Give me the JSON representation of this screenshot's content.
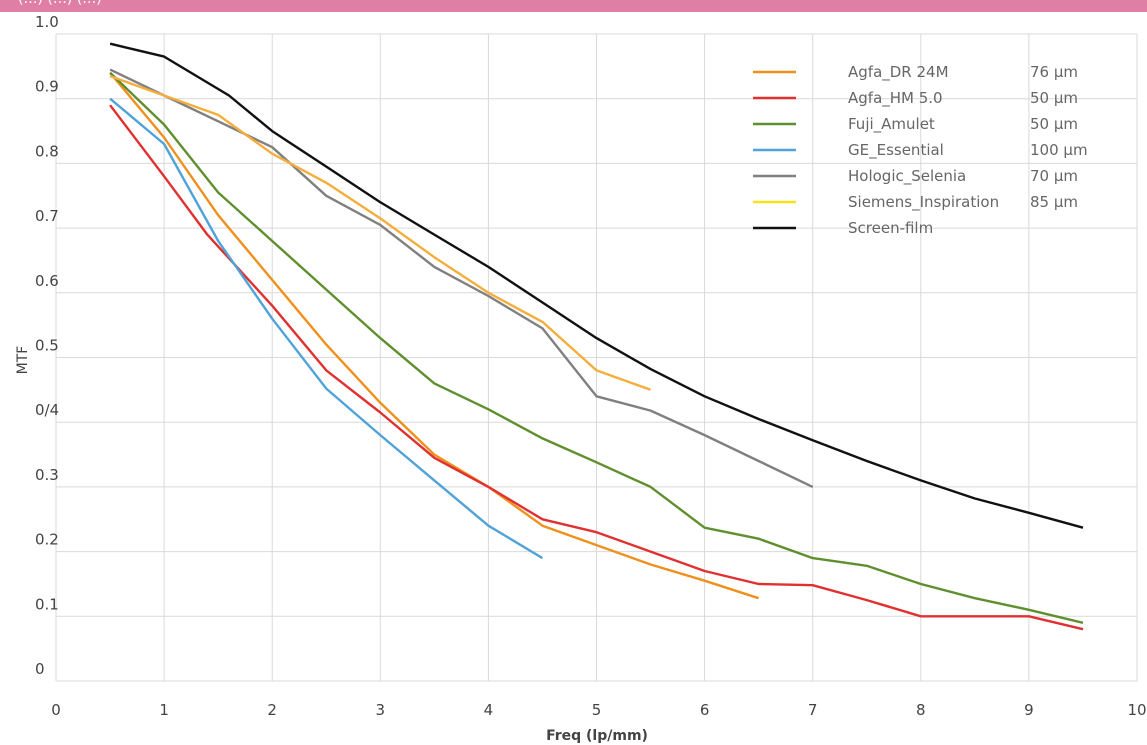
{
  "header": {
    "text": "(…) (…) (…)",
    "color": "#e07fa6"
  },
  "chart_data": {
    "type": "line",
    "title": "",
    "xlabel": "Freq (lp/mm)",
    "ylabel": "MTF",
    "xlim": [
      0,
      10
    ],
    "ylim": [
      0,
      1.0
    ],
    "x_ticks": [
      "0",
      "1",
      "2",
      "3",
      "4",
      "5",
      "6",
      "7",
      "8",
      "9",
      "10"
    ],
    "y_ticks": [
      "0",
      "0.1",
      "0.2",
      "0.3",
      "0/4",
      "0.5",
      "0.6",
      "0.7",
      "0.8",
      "0.9",
      "1.0"
    ],
    "grid": "vertical and horizontal",
    "legend_position": "top-right",
    "series": [
      {
        "name": "Agfa_DR 24M",
        "pixel_size": "76 µm",
        "color": "#f0901c",
        "points": [
          [
            0.5,
            0.94
          ],
          [
            1.0,
            0.84
          ],
          [
            1.5,
            0.72
          ],
          [
            2.0,
            0.62
          ],
          [
            2.25,
            0.57
          ],
          [
            2.5,
            0.52
          ],
          [
            3.0,
            0.43
          ],
          [
            3.5,
            0.35
          ],
          [
            4.0,
            0.3
          ],
          [
            4.5,
            0.24
          ],
          [
            5.0,
            0.21
          ],
          [
            5.5,
            0.18
          ],
          [
            6.0,
            0.155
          ],
          [
            6.5,
            0.128
          ]
        ]
      },
      {
        "name": "Agfa_HM 5.0",
        "pixel_size": "50 µm",
        "color": "#e03030",
        "points": [
          [
            0.5,
            0.89
          ],
          [
            1.0,
            0.78
          ],
          [
            1.4,
            0.69
          ],
          [
            2.0,
            0.58
          ],
          [
            2.5,
            0.48
          ],
          [
            3.0,
            0.415
          ],
          [
            3.5,
            0.345
          ],
          [
            4.0,
            0.3
          ],
          [
            4.5,
            0.25
          ],
          [
            5.0,
            0.23
          ],
          [
            5.5,
            0.2
          ],
          [
            6.0,
            0.17
          ],
          [
            6.5,
            0.15
          ],
          [
            7.0,
            0.148
          ],
          [
            7.5,
            0.125
          ],
          [
            8.0,
            0.1
          ],
          [
            8.5,
            0.1
          ],
          [
            9.0,
            0.1
          ],
          [
            9.5,
            0.08
          ]
        ]
      },
      {
        "name": "Fuji_Amulet",
        "pixel_size": "50 µm",
        "color": "#5f8f2e",
        "points": [
          [
            0.5,
            0.94
          ],
          [
            1.0,
            0.86
          ],
          [
            1.5,
            0.755
          ],
          [
            2.0,
            0.68
          ],
          [
            2.5,
            0.605
          ],
          [
            3.0,
            0.53
          ],
          [
            3.5,
            0.46
          ],
          [
            4.0,
            0.42
          ],
          [
            4.5,
            0.375
          ],
          [
            5.0,
            0.338
          ],
          [
            5.5,
            0.3
          ],
          [
            6.0,
            0.237
          ],
          [
            6.5,
            0.22
          ],
          [
            7.0,
            0.19
          ],
          [
            7.5,
            0.178
          ],
          [
            8.0,
            0.15
          ],
          [
            8.5,
            0.128
          ],
          [
            9.0,
            0.11
          ],
          [
            9.5,
            0.09
          ]
        ]
      },
      {
        "name": "GE_Essential",
        "pixel_size": "100 µm",
        "color": "#4fa3d9",
        "points": [
          [
            0.5,
            0.9
          ],
          [
            1.0,
            0.83
          ],
          [
            1.5,
            0.68
          ],
          [
            2.0,
            0.56
          ],
          [
            2.5,
            0.452
          ],
          [
            3.0,
            0.38
          ],
          [
            3.5,
            0.31
          ],
          [
            4.0,
            0.24
          ],
          [
            4.5,
            0.19
          ]
        ]
      },
      {
        "name": "Hologic_Selenia",
        "pixel_size": "70 µm",
        "color": "#808080",
        "points": [
          [
            0.5,
            0.945
          ],
          [
            1.0,
            0.905
          ],
          [
            1.5,
            0.865
          ],
          [
            2.0,
            0.825
          ],
          [
            2.5,
            0.75
          ],
          [
            3.0,
            0.705
          ],
          [
            3.5,
            0.64
          ],
          [
            4.0,
            0.595
          ],
          [
            4.5,
            0.545
          ],
          [
            5.0,
            0.44
          ],
          [
            5.5,
            0.418
          ],
          [
            6.0,
            0.38
          ],
          [
            6.5,
            0.34
          ],
          [
            7.0,
            0.3
          ]
        ]
      },
      {
        "name": "Siemens_Inspiration",
        "pixel_size": "85 µm",
        "color": "#f5ae3c",
        "legend_color": "#f7e21c",
        "points": [
          [
            0.5,
            0.935
          ],
          [
            1.0,
            0.905
          ],
          [
            1.5,
            0.875
          ],
          [
            2.0,
            0.815
          ],
          [
            2.5,
            0.77
          ],
          [
            3.0,
            0.715
          ],
          [
            3.5,
            0.655
          ],
          [
            4.0,
            0.6
          ],
          [
            4.5,
            0.555
          ],
          [
            5.0,
            0.48
          ],
          [
            5.5,
            0.45
          ]
        ]
      },
      {
        "name": "Screen-film",
        "pixel_size": "",
        "color": "#111111",
        "points": [
          [
            0.5,
            0.985
          ],
          [
            1.0,
            0.965
          ],
          [
            1.6,
            0.905
          ],
          [
            2.0,
            0.85
          ],
          [
            2.5,
            0.795
          ],
          [
            3.0,
            0.74
          ],
          [
            3.5,
            0.69
          ],
          [
            4.0,
            0.64
          ],
          [
            4.5,
            0.585
          ],
          [
            5.0,
            0.53
          ],
          [
            5.5,
            0.482
          ],
          [
            6.0,
            0.44
          ],
          [
            6.5,
            0.405
          ],
          [
            7.0,
            0.372
          ],
          [
            7.5,
            0.34
          ],
          [
            8.0,
            0.31
          ],
          [
            8.5,
            0.282
          ],
          [
            9.0,
            0.26
          ],
          [
            9.5,
            0.237
          ]
        ]
      }
    ]
  }
}
